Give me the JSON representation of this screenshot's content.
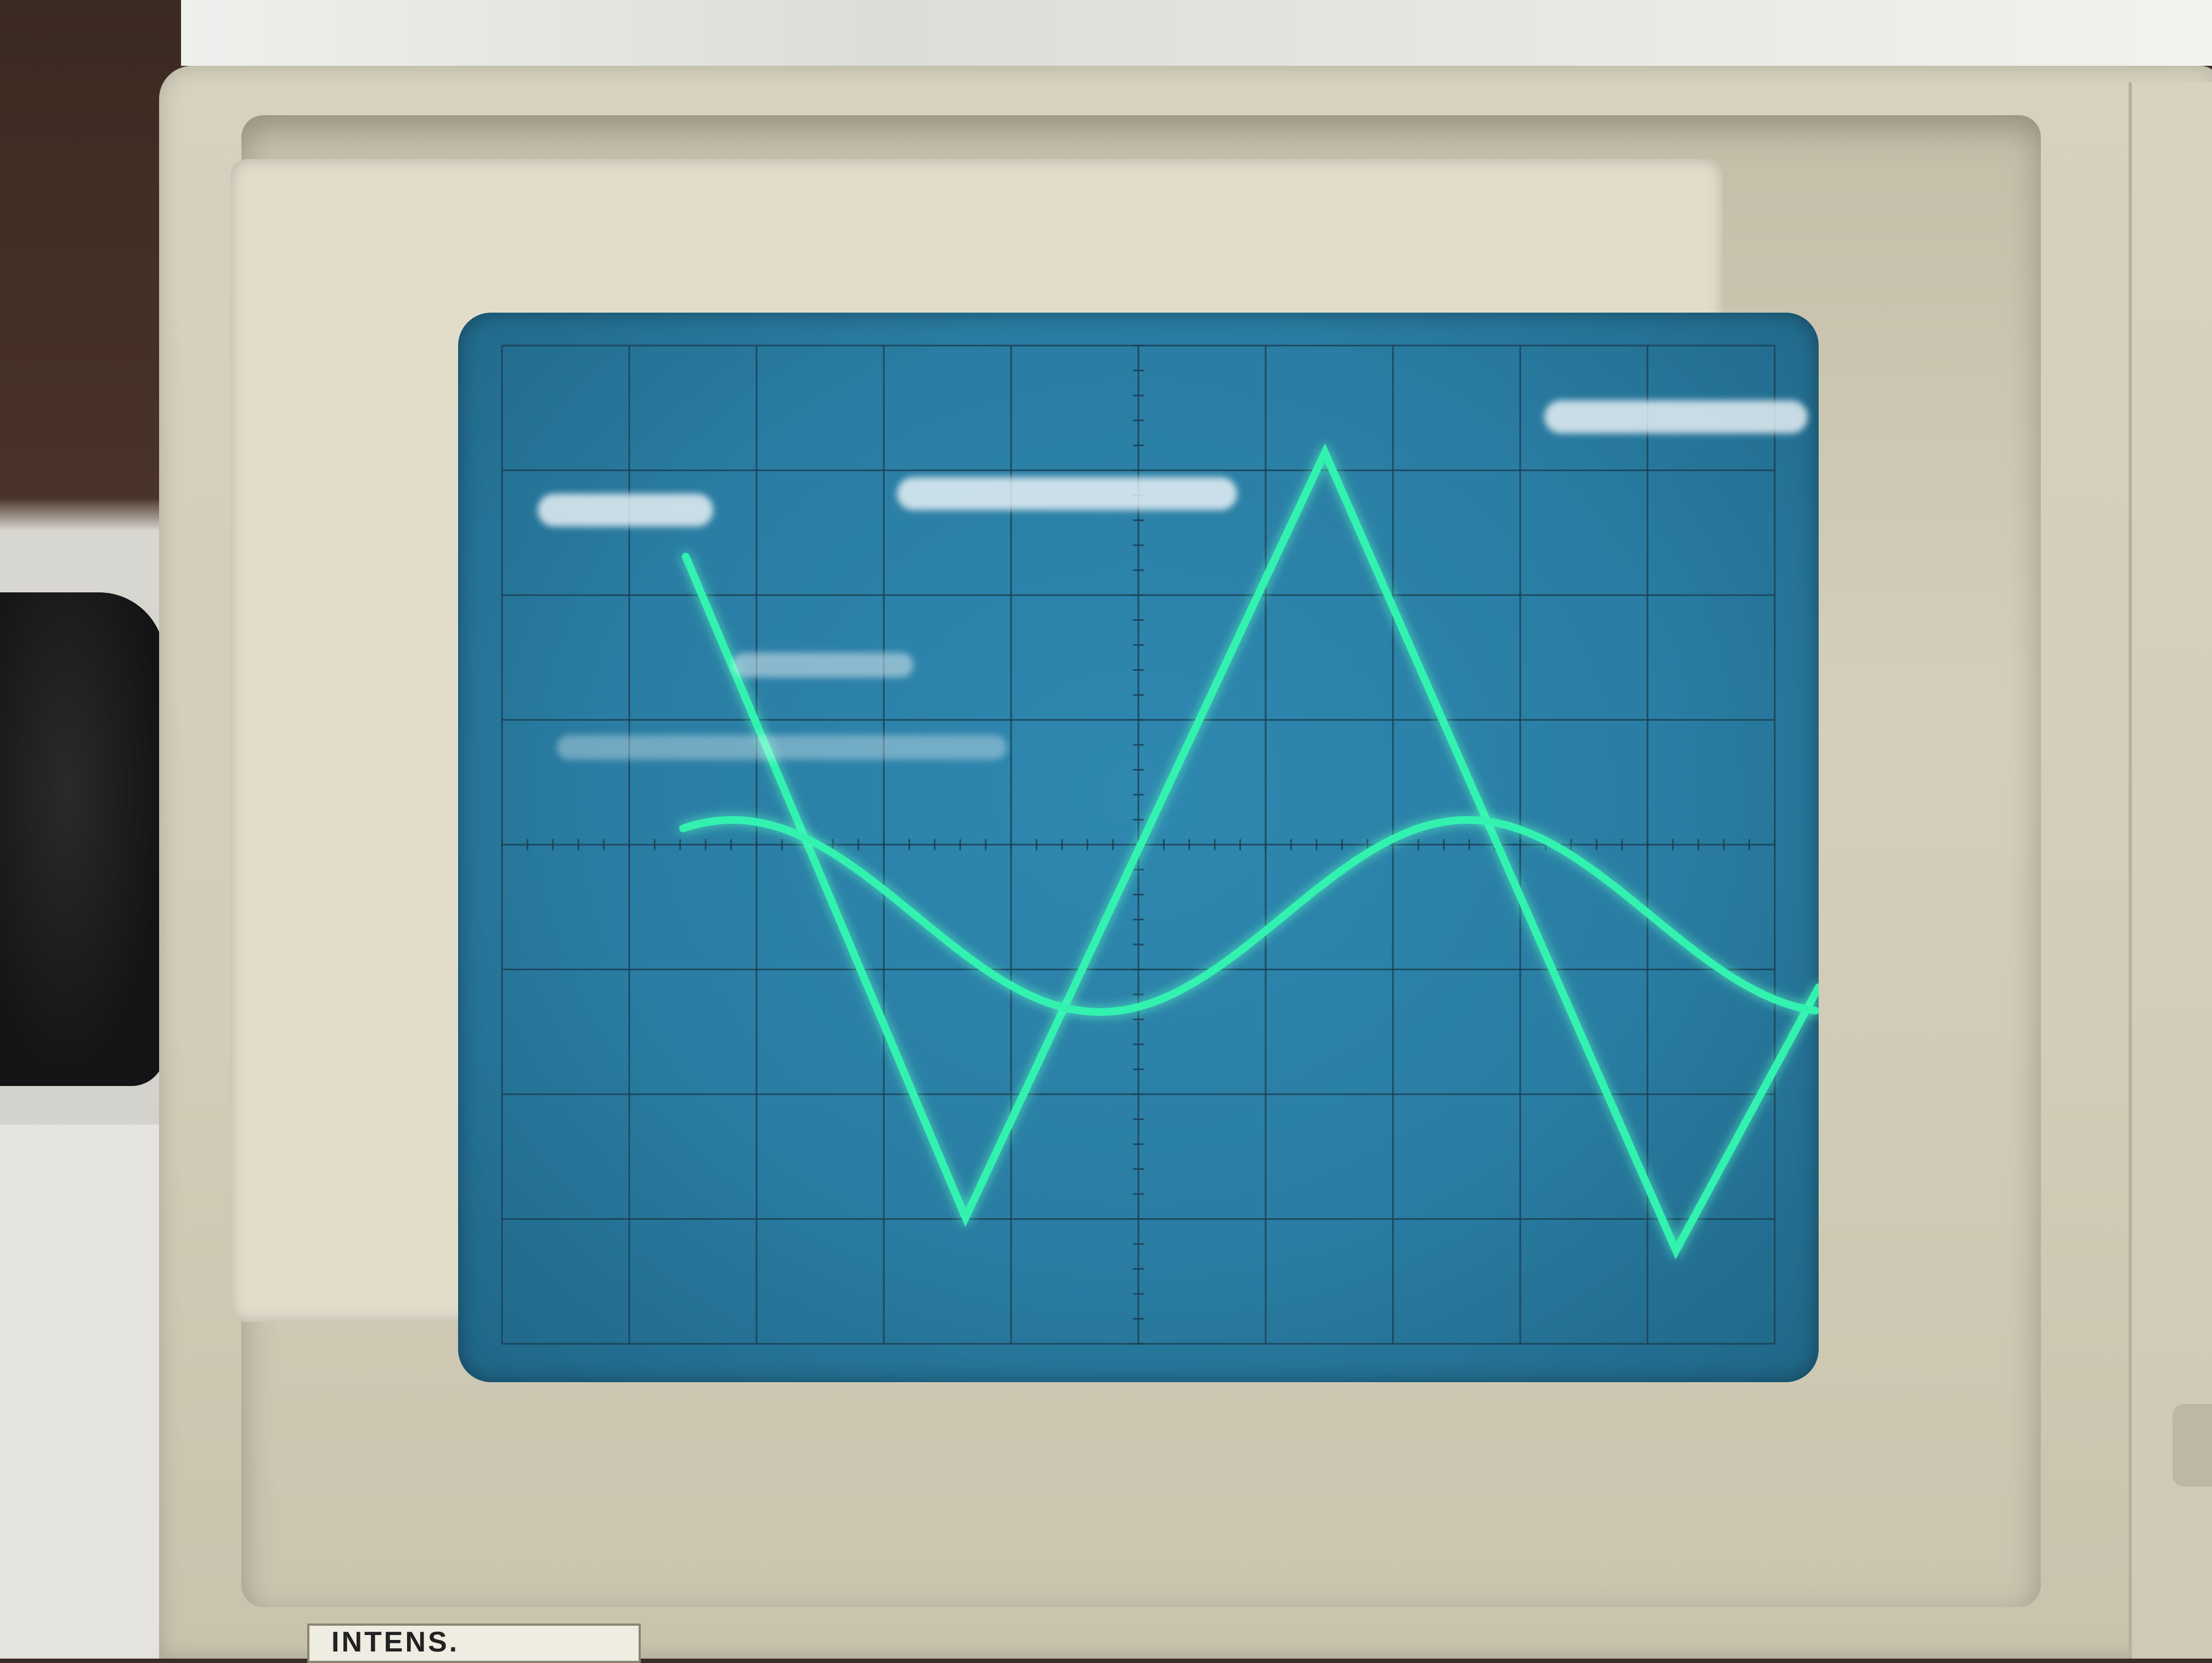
{
  "panel": {
    "intensity_label": "INTENS."
  },
  "traces": [
    {
      "id": "triangle",
      "type": "triangle",
      "color": "#33f2b0"
    },
    {
      "id": "sine",
      "type": "sine",
      "color": "#33f2b0"
    }
  ]
}
